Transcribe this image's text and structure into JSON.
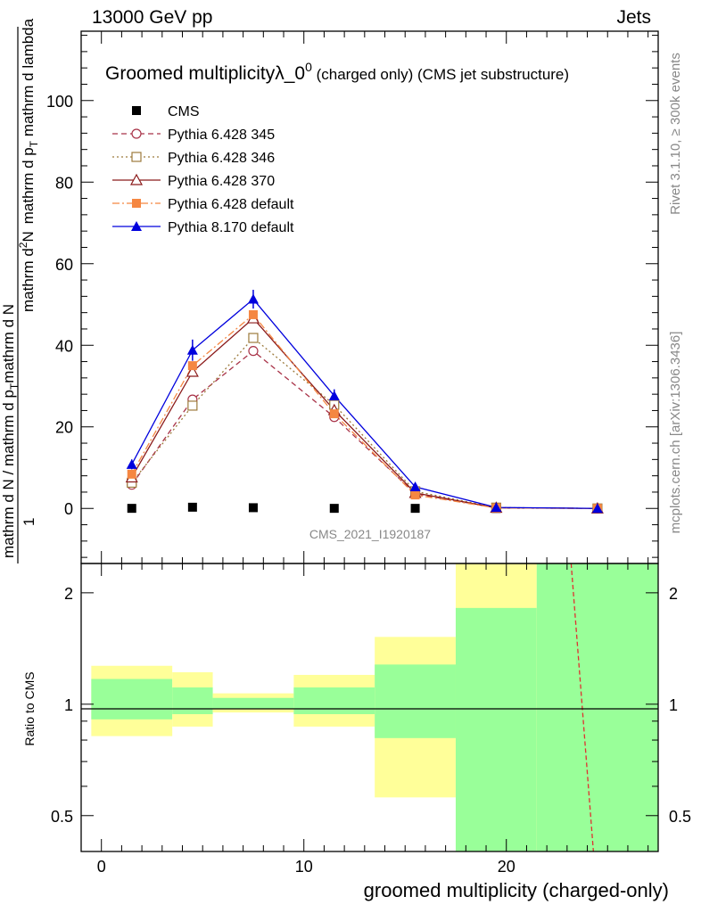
{
  "header": {
    "left": "13000 GeV pp",
    "right": "Jets"
  },
  "chart_data": {
    "type": "line",
    "title": "Groomed multiplicityλ_0",
    "title_sup": "0",
    "title_suffix": " (charged only) (CMS jet substructure)",
    "xlabel": "groomed multiplicity (charged-only)",
    "ylabel_numerator": "1",
    "ylabel_denominator_prefix": "mathrm d N / mathrm d p",
    "ylabel_denominator_sub": "T",
    "ylabel_denominator_mid": "mathrm d N",
    "ylabel_upper": "mathrm d",
    "ylabel_upper_super": "2",
    "ylabel_upper_n": "N",
    "ylabel_upper_rest": "mathrm d p",
    "ylabel_upper_sub": "T",
    "ylabel_upper_tail": " mathrm d lambda",
    "ratio_ylabel": "Ratio to CMS",
    "side_label_top": "Rivet 3.1.10, ≥ 300k events",
    "side_label_bottom": "mcplots.cern.ch [arXiv:1306.3436]",
    "watermark": "CMS_2021_I1920187",
    "xlim": [
      -1,
      27.5
    ],
    "ylim": [
      -13.5,
      117
    ],
    "ratio_ylim": [
      0.4,
      2.4
    ],
    "xticks": [
      "0",
      "10",
      "20"
    ],
    "yticks": [
      "0",
      "20",
      "40",
      "60",
      "80",
      "100"
    ],
    "ratio_yticks": [
      "0.5",
      "1",
      "2"
    ],
    "x": [
      1.5,
      4.5,
      7.5,
      11.5,
      15.5,
      19.5,
      24.5
    ],
    "bins": [
      [
        -0.5,
        3.5
      ],
      [
        3.5,
        5.5
      ],
      [
        5.5,
        9.5
      ],
      [
        9.5,
        13.5
      ],
      [
        13.5,
        17.5
      ],
      [
        17.5,
        21.5
      ],
      [
        21.5,
        27.5
      ]
    ],
    "series": [
      {
        "name": "CMS",
        "color": "#000000",
        "marker": "square",
        "values": [
          0.02,
          0.3,
          0.18,
          0.02,
          0.02,
          0.001,
          0.0
        ]
      },
      {
        "name": "Pythia 6.428 345",
        "color": "#a83247",
        "marker": "circle",
        "dash": "6,4",
        "values": [
          5.8,
          26.7,
          38.6,
          22.4,
          3.6,
          0.15,
          0.0
        ]
      },
      {
        "name": "Pythia 6.428 346",
        "color": "#9c7a3c",
        "marker": "square-open",
        "dash": "2,3",
        "values": [
          6.3,
          25.2,
          41.8,
          25.4,
          4.2,
          0.2,
          0.0
        ]
      },
      {
        "name": "Pythia 6.428 370",
        "color": "#8b1a1a",
        "marker": "triangle-open",
        "dash": "",
        "values": [
          7.6,
          33.5,
          46.6,
          24.1,
          3.8,
          0.15,
          0.0
        ]
      },
      {
        "name": "Pythia 6.428 default",
        "color": "#f58742",
        "marker": "square-filled",
        "dash": "8,3,2,3",
        "values": [
          8.4,
          35.0,
          47.5,
          23.2,
          3.3,
          0.12,
          0.0
        ]
      },
      {
        "name": "Pythia 8.170 default",
        "color": "#0000dd",
        "marker": "triangle",
        "dash": "",
        "values": [
          10.8,
          38.8,
          51.3,
          27.6,
          5.3,
          0.25,
          0.0
        ],
        "err": [
          1.2,
          2.6,
          2.3,
          1.6,
          0.6,
          0.05,
          0.0
        ]
      }
    ],
    "ratio_band_yellow": [
      [
        0.82,
        1.27
      ],
      [
        0.87,
        1.22
      ],
      [
        0.95,
        1.07
      ],
      [
        0.87,
        1.2
      ],
      [
        0.56,
        1.52
      ],
      [
        0.4,
        2.4
      ],
      [
        0.4,
        2.4
      ]
    ],
    "ratio_band_green": [
      [
        0.91,
        1.17
      ],
      [
        0.94,
        1.11
      ],
      [
        0.97,
        1.04
      ],
      [
        0.94,
        1.11
      ],
      [
        0.81,
        1.28
      ],
      [
        0.4,
        1.82
      ],
      [
        0.4,
        2.4
      ]
    ],
    "ratio_red_line": {
      "x": [
        23.2,
        24.3
      ],
      "y": [
        2.4,
        0.4
      ]
    }
  }
}
